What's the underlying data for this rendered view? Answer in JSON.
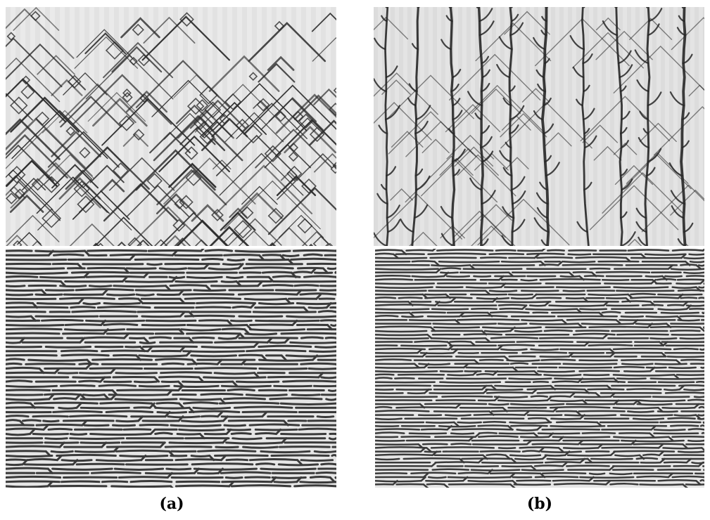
{
  "figure": {
    "captions": {
      "a": "(a)",
      "b": "(b)"
    },
    "panels": [
      {
        "id": "a-top",
        "kind": "triangular-branching-pattern"
      },
      {
        "id": "a-bottom",
        "kind": "labyrinthine-stripe-pattern"
      },
      {
        "id": "b-top",
        "kind": "dendritic-branching-pattern"
      },
      {
        "id": "b-bottom",
        "kind": "labyrinthine-stripe-pattern"
      }
    ],
    "colors": {
      "background": "#ffffff",
      "panel_light": "#ececec",
      "panel_mid": "#c8c8c8",
      "ink": "#2a2a2a"
    }
  }
}
